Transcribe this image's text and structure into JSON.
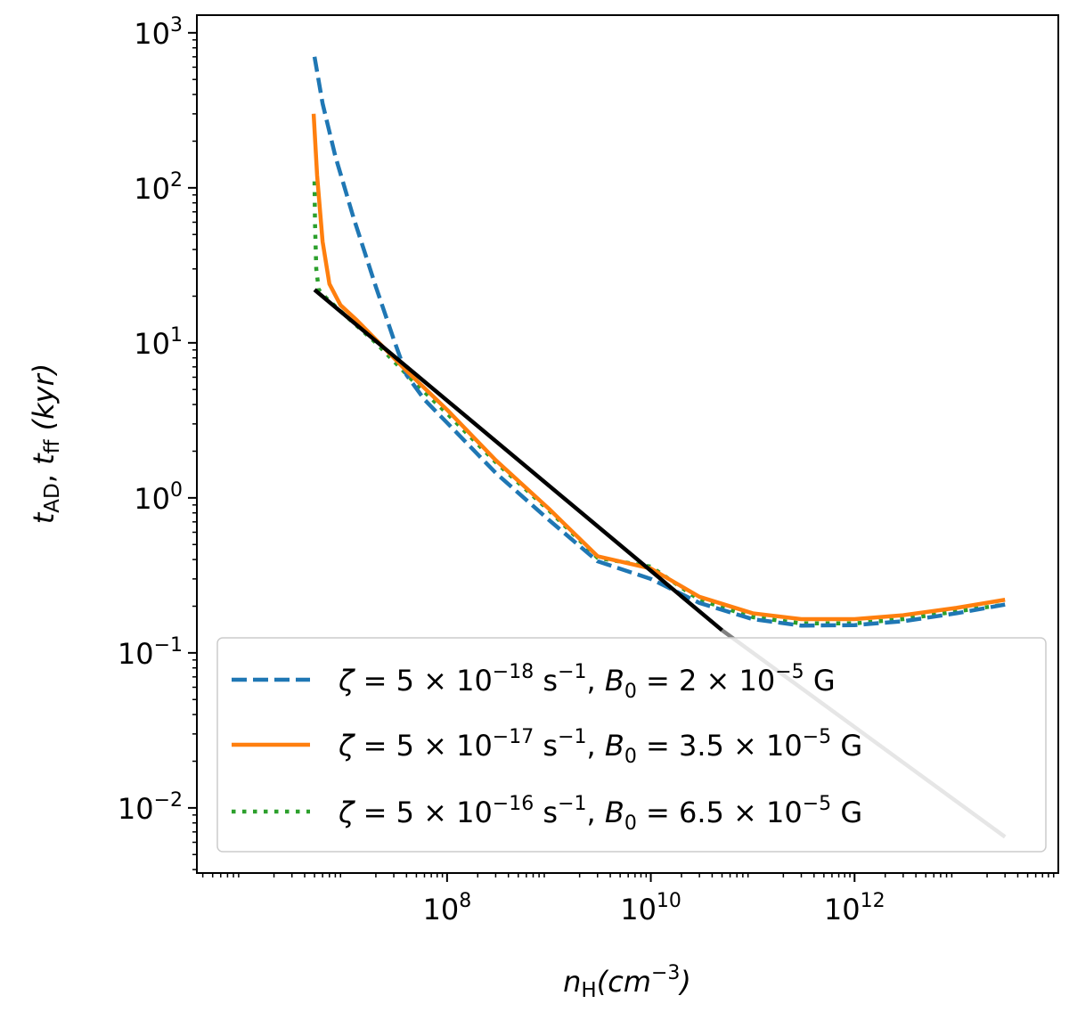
{
  "chart_data": {
    "type": "line",
    "xscale": "log",
    "yscale": "log",
    "xlim": [
      350000.0,
      100000000000000.0
    ],
    "ylim": [
      0.0038,
      1300
    ],
    "xticks": [
      {
        "value": 100000000.0,
        "base": "10",
        "exp": "8"
      },
      {
        "value": 10000000000.0,
        "base": "10",
        "exp": "10"
      },
      {
        "value": 1000000000000.0,
        "base": "10",
        "exp": "12"
      }
    ],
    "yticks": [
      {
        "value": 1000.0,
        "base": "10",
        "exp": "3"
      },
      {
        "value": 100.0,
        "base": "10",
        "exp": "2"
      },
      {
        "value": 10.0,
        "base": "10",
        "exp": "1"
      },
      {
        "value": 1.0,
        "base": "10",
        "exp": "0"
      },
      {
        "value": 0.1,
        "base": "10",
        "exp": "−1"
      },
      {
        "value": 0.01,
        "base": "10",
        "exp": "−2"
      }
    ],
    "xlabel": {
      "main": "n",
      "sub": "H",
      "rest": "(cm",
      "exp": "−3",
      "close": ")"
    },
    "ylabel": {
      "t1": "t",
      "s1": "AD",
      "sep": ", ",
      "t2": "t",
      "s2": "ff",
      "rest": " (kyr)"
    },
    "grid": false,
    "legend_position": "lower-center",
    "series": [
      {
        "name": "ζ = 5 × 10⁻¹⁸ s⁻¹,  B₀ = 2 × 10⁻⁵ G",
        "legend": {
          "zeta_exp": "−18",
          "b_mant": "2"
        },
        "color": "#1f77b4",
        "style": "dashed",
        "x": [
          5000000.0,
          6000000.0,
          8000000.0,
          12000000.0,
          20000000.0,
          30000000.0,
          40000000.0,
          60000000.0,
          100000000.0,
          300000000.0,
          1000000000.0,
          3000000000.0,
          10000000000.0,
          30000000000.0,
          100000000000.0,
          300000000000.0,
          1000000000000.0,
          3000000000000.0,
          10000000000000.0,
          30000000000000.0
        ],
        "y": [
          700,
          350,
          160,
          65,
          23,
          10.5,
          6.2,
          4.3,
          3.05,
          1.45,
          0.72,
          0.39,
          0.3,
          0.21,
          0.165,
          0.15,
          0.151,
          0.16,
          0.18,
          0.205
        ]
      },
      {
        "name": "ζ = 5 × 10⁻¹⁷ s⁻¹,  B₀ = 3.5 × 10⁻⁵ G",
        "legend": {
          "zeta_exp": "−17",
          "b_mant": "3.5"
        },
        "color": "#ff7f0e",
        "style": "solid",
        "x": [
          4900000.0,
          5300000.0,
          6000000.0,
          7000000.0,
          9000000.0,
          13000000.0,
          20000000.0,
          40000000.0,
          100000000.0,
          300000000.0,
          1000000000.0,
          3000000000.0,
          10000000000.0,
          30000000000.0,
          100000000000.0,
          300000000000.0,
          1000000000000.0,
          3000000000000.0,
          10000000000000.0,
          30000000000000.0
        ],
        "y": [
          300,
          120,
          45,
          24,
          17.5,
          14,
          10.5,
          6.6,
          3.7,
          1.75,
          0.85,
          0.42,
          0.35,
          0.23,
          0.18,
          0.165,
          0.165,
          0.175,
          0.195,
          0.22
        ]
      },
      {
        "name": "ζ = 5 × 10⁻¹⁶ s⁻¹,  B₀ = 6.5 × 10⁻⁵ G",
        "legend": {
          "zeta_exp": "−16",
          "b_mant": "6.5"
        },
        "color": "#2ca02c",
        "style": "dotted",
        "x": [
          5000000.0,
          5050000.0,
          5200000.0,
          5500000.0,
          6500000.0,
          9000000.0,
          20000000.0,
          50000000.0,
          100000000.0,
          300000000.0,
          1000000000.0,
          3000000000.0,
          10000000000.0,
          30000000000.0,
          100000000000.0,
          300000000000.0,
          1000000000000.0,
          3000000000000.0,
          10000000000000.0,
          30000000000000.0
        ],
        "y": [
          110,
          60,
          30,
          22,
          19.5,
          16,
          10,
          5.4,
          3.5,
          1.7,
          0.83,
          0.41,
          0.36,
          0.22,
          0.17,
          0.155,
          0.155,
          0.165,
          0.185,
          0.205
        ]
      },
      {
        "name": "t_ff",
        "color": "#000000",
        "style": "solid",
        "x": [
          5000000.0,
          50000000000.0
        ],
        "y": [
          22,
          0.14
        ]
      },
      {
        "name": "t_ff extension",
        "color": "#808080",
        "style": "solid",
        "x": [
          50000000000.0,
          30000000000000.0
        ],
        "y": [
          0.14,
          0.0065
        ]
      }
    ]
  }
}
